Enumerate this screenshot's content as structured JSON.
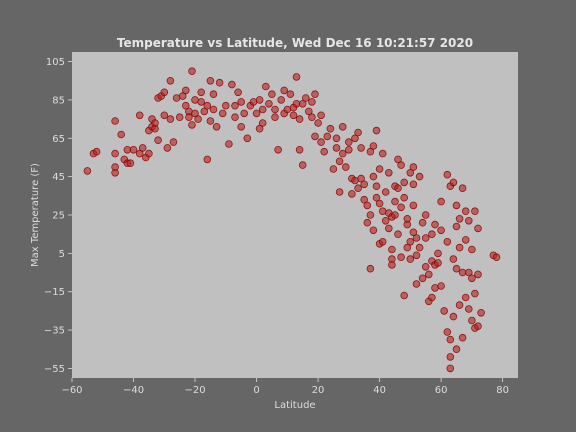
{
  "chart_data": {
    "type": "scatter",
    "title": "Temperature vs Latitude, Wed Dec 16 10:21:57 2020",
    "xlabel": "Latitude",
    "ylabel": "Max Temperature (F)",
    "xlim": [
      -60,
      85
    ],
    "ylim": [
      -60,
      110
    ],
    "xticks": [
      -60,
      -40,
      -20,
      0,
      20,
      40,
      60,
      80
    ],
    "yticks": [
      -55,
      -35,
      -15,
      5,
      25,
      45,
      65,
      85,
      105
    ],
    "grid": false,
    "colors": {
      "point": "#b22222",
      "background": "#666666",
      "plot_bg": "#c0c0c0"
    },
    "series": [
      {
        "points": [
          [
            -55,
            48
          ],
          [
            -53,
            57
          ],
          [
            -52,
            58
          ],
          [
            -46,
            47
          ],
          [
            -46,
            50
          ],
          [
            -46,
            57
          ],
          [
            -46,
            74
          ],
          [
            -44,
            67
          ],
          [
            -43,
            54
          ],
          [
            -42,
            59
          ],
          [
            -42,
            52
          ],
          [
            -41,
            52
          ],
          [
            -40,
            59
          ],
          [
            -38,
            57
          ],
          [
            -38,
            77
          ],
          [
            -37,
            60
          ],
          [
            -36,
            55
          ],
          [
            -35,
            57
          ],
          [
            -35,
            69
          ],
          [
            -34,
            75
          ],
          [
            -34,
            71
          ],
          [
            -33,
            70
          ],
          [
            -33,
            73
          ],
          [
            -32,
            64
          ],
          [
            -32,
            86
          ],
          [
            -31,
            87
          ],
          [
            -30,
            77
          ],
          [
            -30,
            89
          ],
          [
            -29,
            60
          ],
          [
            -28,
            75
          ],
          [
            -28,
            95
          ],
          [
            -27,
            63
          ],
          [
            -26,
            86
          ],
          [
            -25,
            76
          ],
          [
            -24,
            87
          ],
          [
            -23,
            82
          ],
          [
            -23,
            90
          ],
          [
            -22,
            79
          ],
          [
            -22,
            76
          ],
          [
            -21,
            72
          ],
          [
            -21,
            100
          ],
          [
            -20,
            85
          ],
          [
            -20,
            78
          ],
          [
            -19,
            75
          ],
          [
            -18,
            89
          ],
          [
            -18,
            84
          ],
          [
            -17,
            79
          ],
          [
            -16,
            54
          ],
          [
            -16,
            82
          ],
          [
            -15,
            74
          ],
          [
            -15,
            95
          ],
          [
            -14,
            88
          ],
          [
            -14,
            80
          ],
          [
            -13,
            71
          ],
          [
            -12,
            94
          ],
          [
            -11,
            78
          ],
          [
            -10,
            82
          ],
          [
            -9,
            62
          ],
          [
            -8,
            93
          ],
          [
            -7,
            82
          ],
          [
            -7,
            76
          ],
          [
            -6,
            89
          ],
          [
            -5,
            84
          ],
          [
            -5,
            71
          ],
          [
            -4,
            78
          ],
          [
            -3,
            65
          ],
          [
            -2,
            82
          ],
          [
            -1,
            84
          ],
          [
            0,
            78
          ],
          [
            1,
            85
          ],
          [
            1,
            70
          ],
          [
            2,
            73
          ],
          [
            2,
            80
          ],
          [
            3,
            92
          ],
          [
            4,
            83
          ],
          [
            5,
            88
          ],
          [
            6,
            80
          ],
          [
            6,
            76
          ],
          [
            7,
            59
          ],
          [
            8,
            85
          ],
          [
            9,
            90
          ],
          [
            9,
            78
          ],
          [
            10,
            80
          ],
          [
            11,
            88
          ],
          [
            12,
            77
          ],
          [
            12,
            81
          ],
          [
            13,
            97
          ],
          [
            13,
            83
          ],
          [
            14,
            75
          ],
          [
            14,
            59
          ],
          [
            15,
            83
          ],
          [
            15,
            51
          ],
          [
            16,
            86
          ],
          [
            17,
            79
          ],
          [
            18,
            76
          ],
          [
            18,
            84
          ],
          [
            19,
            88
          ],
          [
            19,
            66
          ],
          [
            20,
            73
          ],
          [
            21,
            77
          ],
          [
            21,
            63
          ],
          [
            22,
            58
          ],
          [
            23,
            66
          ],
          [
            24,
            70
          ],
          [
            25,
            49
          ],
          [
            26,
            65
          ],
          [
            26,
            60
          ],
          [
            27,
            53
          ],
          [
            27,
            37
          ],
          [
            28,
            71
          ],
          [
            28,
            57
          ],
          [
            29,
            50
          ],
          [
            30,
            59
          ],
          [
            30,
            63
          ],
          [
            31,
            44
          ],
          [
            31,
            36
          ],
          [
            32,
            43
          ],
          [
            32,
            65
          ],
          [
            33,
            68
          ],
          [
            33,
            39
          ],
          [
            34,
            44
          ],
          [
            34,
            60
          ],
          [
            35,
            33
          ],
          [
            35,
            41
          ],
          [
            36,
            30
          ],
          [
            36,
            21
          ],
          [
            37,
            25
          ],
          [
            37,
            58
          ],
          [
            37,
            -3
          ],
          [
            38,
            61
          ],
          [
            38,
            45
          ],
          [
            38,
            17
          ],
          [
            39,
            69
          ],
          [
            39,
            34
          ],
          [
            39,
            40
          ],
          [
            40,
            10
          ],
          [
            40,
            31
          ],
          [
            40,
            49
          ],
          [
            41,
            11
          ],
          [
            41,
            27
          ],
          [
            41,
            57
          ],
          [
            42,
            22
          ],
          [
            42,
            37
          ],
          [
            43,
            47
          ],
          [
            43,
            26
          ],
          [
            43,
            18
          ],
          [
            44,
            2
          ],
          [
            44,
            -1
          ],
          [
            44,
            24
          ],
          [
            44,
            7
          ],
          [
            45,
            32
          ],
          [
            45,
            40
          ],
          [
            45,
            25
          ],
          [
            46,
            54
          ],
          [
            46,
            15
          ],
          [
            46,
            39
          ],
          [
            47,
            51
          ],
          [
            47,
            29
          ],
          [
            47,
            3
          ],
          [
            48,
            -17
          ],
          [
            48,
            42
          ],
          [
            48,
            34
          ],
          [
            49,
            20
          ],
          [
            49,
            8
          ],
          [
            49,
            23
          ],
          [
            50,
            47
          ],
          [
            50,
            11
          ],
          [
            50,
            2
          ],
          [
            51,
            50
          ],
          [
            51,
            30
          ],
          [
            51,
            16
          ],
          [
            51,
            41
          ],
          [
            52,
            13
          ],
          [
            52,
            -11
          ],
          [
            52,
            4
          ],
          [
            53,
            45
          ],
          [
            53,
            8
          ],
          [
            54,
            -8
          ],
          [
            54,
            21
          ],
          [
            55,
            25
          ],
          [
            55,
            13
          ],
          [
            55,
            -2
          ],
          [
            56,
            -6
          ],
          [
            56,
            -20
          ],
          [
            57,
            15
          ],
          [
            57,
            1
          ],
          [
            57,
            -18
          ],
          [
            58,
            20
          ],
          [
            58,
            -13
          ],
          [
            58,
            -1
          ],
          [
            59,
            0
          ],
          [
            59,
            5
          ],
          [
            60,
            32
          ],
          [
            60,
            -12
          ],
          [
            60,
            17
          ],
          [
            61,
            -25
          ],
          [
            62,
            46
          ],
          [
            62,
            11
          ],
          [
            62,
            -36
          ],
          [
            63,
            -40
          ],
          [
            63,
            -49
          ],
          [
            63,
            -55
          ],
          [
            63,
            40
          ],
          [
            64,
            -28
          ],
          [
            64,
            42
          ],
          [
            64,
            2
          ],
          [
            65,
            30
          ],
          [
            65,
            19
          ],
          [
            65,
            -3
          ],
          [
            65,
            -45
          ],
          [
            66,
            -22
          ],
          [
            66,
            8
          ],
          [
            66,
            23
          ],
          [
            67,
            -5
          ],
          [
            67,
            -39
          ],
          [
            67,
            39
          ],
          [
            68,
            -18
          ],
          [
            68,
            12
          ],
          [
            68,
            27
          ],
          [
            69,
            -24
          ],
          [
            69,
            -5
          ],
          [
            69,
            22
          ],
          [
            70,
            -30
          ],
          [
            70,
            -8
          ],
          [
            70,
            7
          ],
          [
            71,
            -34
          ],
          [
            71,
            27
          ],
          [
            71,
            -16
          ],
          [
            72,
            18
          ],
          [
            72,
            -33
          ],
          [
            72,
            -6
          ],
          [
            73,
            -26
          ],
          [
            77,
            4
          ],
          [
            78,
            3
          ]
        ]
      }
    ]
  }
}
